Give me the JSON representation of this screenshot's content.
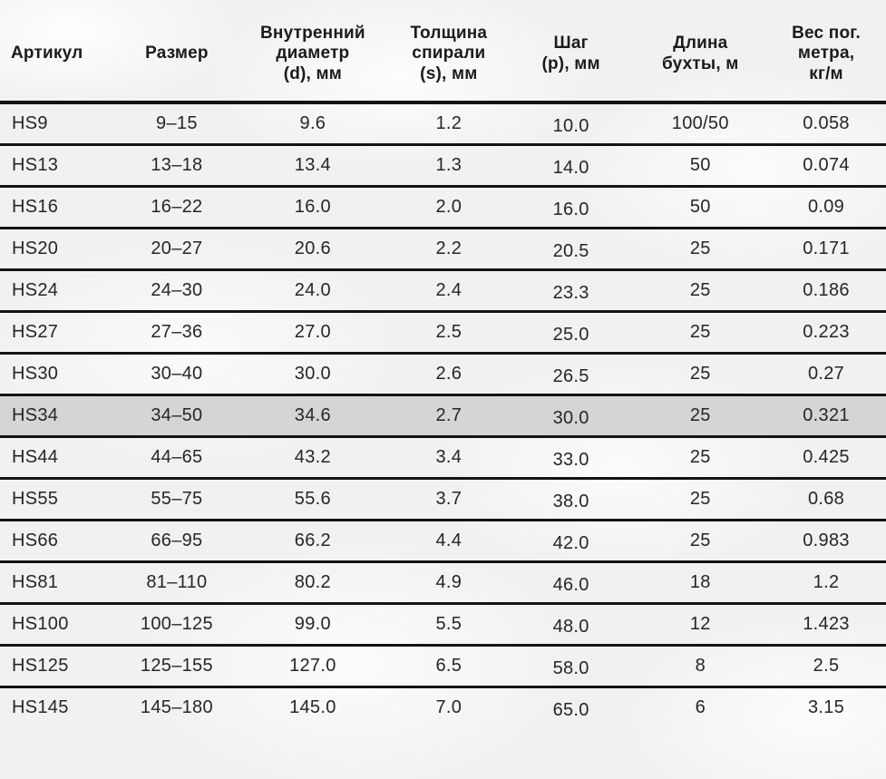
{
  "table": {
    "columns": [
      {
        "label": "Артикул"
      },
      {
        "label": "Размер"
      },
      {
        "label": "Внутренний\nдиаметр\n(d), мм"
      },
      {
        "label": "Толщина\nспирали\n(s), мм"
      },
      {
        "label": "Шаг\n(p), мм"
      },
      {
        "label": "Длина\nбухты, м"
      },
      {
        "label": "Вес пог.\nметра,\nкг/м"
      }
    ],
    "rows": [
      {
        "article": "HS9",
        "size": "9–15",
        "inner_diameter": "9.6",
        "spiral_thickness": "1.2",
        "pitch": "10.0",
        "coil_length": "100/50",
        "weight": "0.058",
        "highlighted": false
      },
      {
        "article": "HS13",
        "size": "13–18",
        "inner_diameter": "13.4",
        "spiral_thickness": "1.3",
        "pitch": "14.0",
        "coil_length": "50",
        "weight": "0.074",
        "highlighted": false
      },
      {
        "article": "HS16",
        "size": "16–22",
        "inner_diameter": "16.0",
        "spiral_thickness": "2.0",
        "pitch": "16.0",
        "coil_length": "50",
        "weight": "0.09",
        "highlighted": false
      },
      {
        "article": "HS20",
        "size": "20–27",
        "inner_diameter": "20.6",
        "spiral_thickness": "2.2",
        "pitch": "20.5",
        "coil_length": "25",
        "weight": "0.171",
        "highlighted": false
      },
      {
        "article": "HS24",
        "size": "24–30",
        "inner_diameter": "24.0",
        "spiral_thickness": "2.4",
        "pitch": "23.3",
        "coil_length": "25",
        "weight": "0.186",
        "highlighted": false
      },
      {
        "article": "HS27",
        "size": "27–36",
        "inner_diameter": "27.0",
        "spiral_thickness": "2.5",
        "pitch": "25.0",
        "coil_length": "25",
        "weight": "0.223",
        "highlighted": false
      },
      {
        "article": "HS30",
        "size": "30–40",
        "inner_diameter": "30.0",
        "spiral_thickness": "2.6",
        "pitch": "26.5",
        "coil_length": "25",
        "weight": "0.27",
        "highlighted": false
      },
      {
        "article": "HS34",
        "size": "34–50",
        "inner_diameter": "34.6",
        "spiral_thickness": "2.7",
        "pitch": "30.0",
        "coil_length": "25",
        "weight": "0.321",
        "highlighted": true
      },
      {
        "article": "HS44",
        "size": "44–65",
        "inner_diameter": "43.2",
        "spiral_thickness": "3.4",
        "pitch": "33.0",
        "coil_length": "25",
        "weight": "0.425",
        "highlighted": false
      },
      {
        "article": "HS55",
        "size": "55–75",
        "inner_diameter": "55.6",
        "spiral_thickness": "3.7",
        "pitch": "38.0",
        "coil_length": "25",
        "weight": "0.68",
        "highlighted": false
      },
      {
        "article": "HS66",
        "size": "66–95",
        "inner_diameter": "66.2",
        "spiral_thickness": "4.4",
        "pitch": "42.0",
        "coil_length": "25",
        "weight": "0.983",
        "highlighted": false
      },
      {
        "article": "HS81",
        "size": "81–110",
        "inner_diameter": "80.2",
        "spiral_thickness": "4.9",
        "pitch": "46.0",
        "coil_length": "18",
        "weight": "1.2",
        "highlighted": false
      },
      {
        "article": "HS100",
        "size": "100–125",
        "inner_diameter": "99.0",
        "spiral_thickness": "5.5",
        "pitch": "48.0",
        "coil_length": "12",
        "weight": "1.423",
        "highlighted": false
      },
      {
        "article": "HS125",
        "size": "125–155",
        "inner_diameter": "127.0",
        "spiral_thickness": "6.5",
        "pitch": "58.0",
        "coil_length": "8",
        "weight": "2.5",
        "highlighted": false
      },
      {
        "article": "HS145",
        "size": "145–180",
        "inner_diameter": "145.0",
        "spiral_thickness": "7.0",
        "pitch": "65.0",
        "coil_length": "6",
        "weight": "3.15",
        "highlighted": false
      }
    ]
  },
  "colors": {
    "highlight_row": "#d4d5d7",
    "separator": "#141414",
    "header_text": "#1b1b1d",
    "body_text": "#262626",
    "background": "#f0f1f3"
  }
}
